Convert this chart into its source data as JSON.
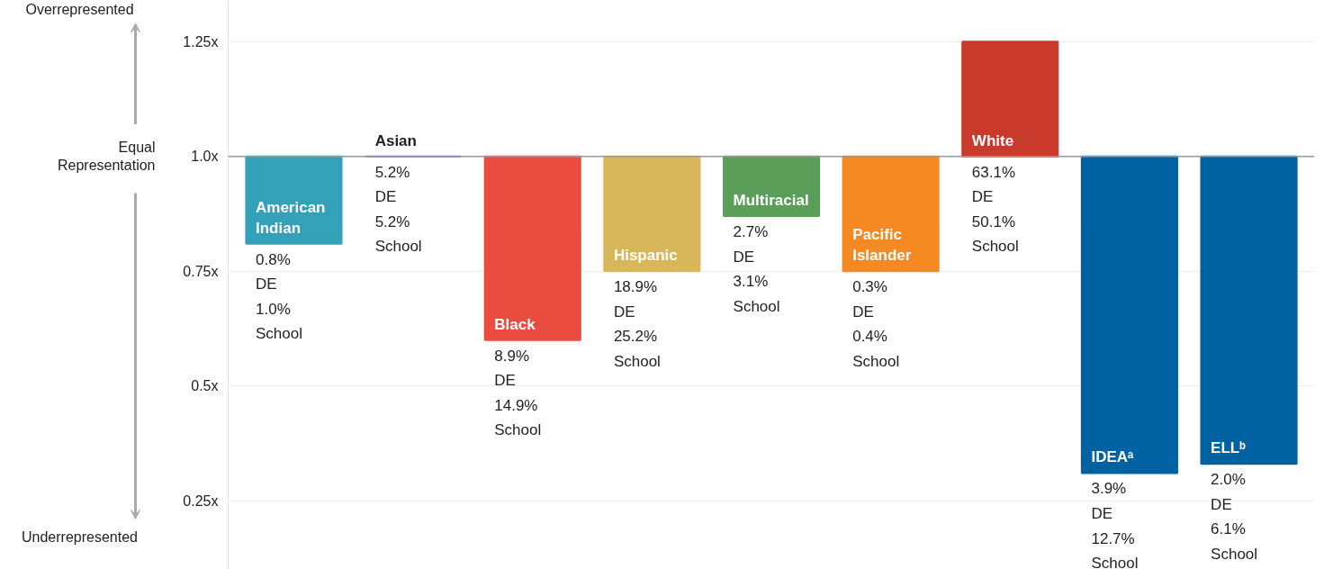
{
  "chart_data": {
    "type": "bar",
    "categories": [
      "American Indian",
      "Asian",
      "Black",
      "Hispanic",
      "Multiracial",
      "Pacific Islander",
      "White",
      "IDEAᵃ",
      "ELLᵇ"
    ],
    "base": [
      1.0,
      1.0,
      1.0,
      1.0,
      1.0,
      1.0,
      1.0,
      1.0,
      1.0
    ],
    "values": [
      -0.19,
      0.0,
      -0.4,
      -0.25,
      -0.13,
      -0.25,
      0.25,
      -0.69,
      -0.67
    ],
    "colors": [
      "#33a1b8",
      "#a05fc0",
      "#eb4c40",
      "#d8b65a",
      "#5a9e5a",
      "#f58a23",
      "#c9392c",
      "#0062a0",
      "#0062a0"
    ],
    "ylim": [
      0.1,
      1.34
    ],
    "yticks": [
      {
        "value": 0.25,
        "label": "0.25x"
      },
      {
        "value": 0.5,
        "label": "0.5x"
      },
      {
        "value": 0.75,
        "label": "0.75x"
      },
      {
        "value": 1.0,
        "label": "1.0x"
      },
      {
        "value": 1.25,
        "label": "1.25x"
      }
    ],
    "grid": "y",
    "ref_lines": [
      {
        "axis": "y",
        "value": 1.0,
        "color": "#999999"
      }
    ],
    "annotations": [
      "Overrepresented",
      "Underrepresented",
      "Equal\nRepresentation",
      {
        "text": "0.8%\nDE\n1.0%\nSchool",
        "x": "American Indian",
        "y": 0.81
      },
      {
        "text": "5.2%\nDE\n5.2%\nSchool",
        "x": "Asian",
        "y": 1.0
      },
      {
        "text": "8.9%\nDE\n14.9%\nSchool",
        "x": "Black",
        "y": 0.6
      },
      {
        "text": "18.9%\nDE\n25.2%\nSchool",
        "x": "Hispanic",
        "y": 0.75
      },
      {
        "text": "2.7%\nDE\n3.1%\nSchool",
        "x": "Multiracial",
        "y": 0.87
      },
      {
        "text": "0.3%\nDE\n0.4%\nSchool",
        "x": "Pacific Islander",
        "y": 0.75
      },
      {
        "text": "63.1%\nDE\n50.1%\nSchool",
        "x": "White",
        "y": 1.0
      },
      {
        "text": "3.9%\nDE\n12.7%\nSchool",
        "x": "IDEAᵃ",
        "y": 0.31
      },
      {
        "text": "2.0%\nDE\n6.1%\nSchool",
        "x": "ELLᵇ",
        "y": 0.33
      }
    ]
  }
}
